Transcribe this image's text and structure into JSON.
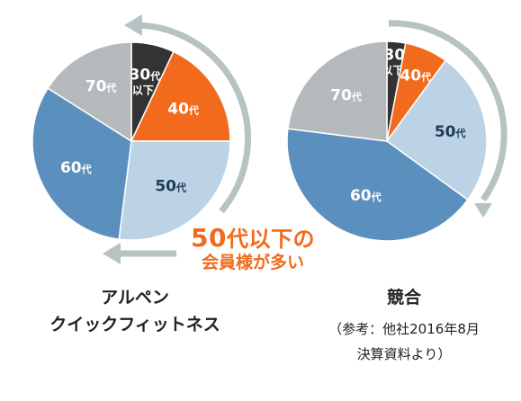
{
  "chart_data": [
    {
      "type": "pie",
      "caption_lines": [
        "アルペン",
        "クイックフィットネス"
      ],
      "categories": [
        "30代以下",
        "40代",
        "50代",
        "60代",
        "70代"
      ],
      "values": [
        7,
        18,
        27,
        32,
        16
      ],
      "slice_labels": [
        {
          "num": "30",
          "unit": "代",
          "sub": "以下"
        },
        {
          "num": "40",
          "unit": "代",
          "sub": ""
        },
        {
          "num": "50",
          "unit": "代",
          "sub": ""
        },
        {
          "num": "60",
          "unit": "代",
          "sub": ""
        },
        {
          "num": "70",
          "unit": "代",
          "sub": ""
        }
      ]
    },
    {
      "type": "pie",
      "caption_lines": [
        "競合"
      ],
      "subcaption_lines": [
        "（参考：他社2016年8月",
        "決算資料より）"
      ],
      "categories": [
        "30代以下",
        "40代",
        "50代",
        "60代",
        "70代"
      ],
      "values": [
        3,
        7,
        25,
        42,
        23
      ],
      "slice_labels": [
        {
          "num": "30",
          "unit": "",
          "sub": "以下"
        },
        {
          "num": "40",
          "unit": "代",
          "sub": ""
        },
        {
          "num": "50",
          "unit": "代",
          "sub": ""
        },
        {
          "num": "60",
          "unit": "代",
          "sub": ""
        },
        {
          "num": "70",
          "unit": "代",
          "sub": ""
        }
      ]
    }
  ],
  "annotation": {
    "num": "50",
    "line1_rest": "代以下の",
    "line2": "会員様が多い"
  },
  "colors": {
    "slices": [
      "#333333",
      "#f26b1d",
      "#bcd3e6",
      "#5b8fbd",
      "#b4b9bc"
    ],
    "slice_text": [
      "#ffffff",
      "#ffffff",
      "#1f3a55",
      "#ffffff",
      "#ffffff"
    ],
    "arrow": "#b7c2c2",
    "accent": "#f26b1d"
  }
}
